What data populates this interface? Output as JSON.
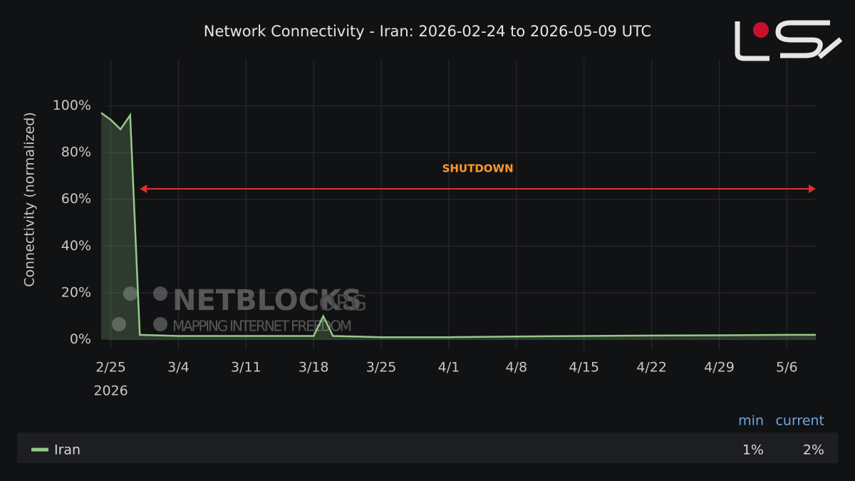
{
  "chart_data": {
    "type": "line",
    "title": "Network Connectivity - Iran: 2026-02-24 to 2026-05-09 UTC",
    "y_label": "Connectivity (normalized)",
    "x": [
      "2026-02-24",
      "2026-02-25",
      "2026-02-26",
      "2026-02-27",
      "2026-02-28",
      "2026-03-04",
      "2026-03-11",
      "2026-03-18",
      "2026-03-19",
      "2026-03-20",
      "2026-03-25",
      "2026-04-01",
      "2026-04-08",
      "2026-04-15",
      "2026-04-22",
      "2026-04-29",
      "2026-05-06",
      "2026-05-09"
    ],
    "series": [
      {
        "name": "Iran",
        "color": "#96c98a",
        "values": [
          97,
          94,
          90,
          96,
          2,
          1.5,
          1.5,
          1.5,
          10,
          1.5,
          1,
          1,
          1.3,
          1.5,
          1.7,
          1.8,
          2,
          2
        ]
      }
    ],
    "xlim": [
      "2026-02-24",
      "2026-05-09"
    ],
    "xticks": [
      {
        "value": "2026-02-25",
        "label": "2/25"
      },
      {
        "value": "2026-03-04",
        "label": "3/4"
      },
      {
        "value": "2026-03-11",
        "label": "3/11"
      },
      {
        "value": "2026-03-18",
        "label": "3/18"
      },
      {
        "value": "2026-03-25",
        "label": "3/25"
      },
      {
        "value": "2026-04-01",
        "label": "4/1"
      },
      {
        "value": "2026-04-08",
        "label": "4/8"
      },
      {
        "value": "2026-04-15",
        "label": "4/15"
      },
      {
        "value": "2026-04-22",
        "label": "4/22"
      },
      {
        "value": "2026-04-29",
        "label": "4/29"
      },
      {
        "value": "2026-05-06",
        "label": "5/6"
      }
    ],
    "x_year_label": "2026",
    "ylim": [
      -2,
      120
    ],
    "yticks": [
      {
        "value": 0,
        "label": "0%"
      },
      {
        "value": 20,
        "label": "20%"
      },
      {
        "value": 40,
        "label": "40%"
      },
      {
        "value": 60,
        "label": "60%"
      },
      {
        "value": 80,
        "label": "80%"
      },
      {
        "value": 100,
        "label": "100%"
      }
    ],
    "grid": true,
    "annotation": {
      "text": "SHUTDOWN",
      "start": "2026-02-28",
      "end": "2026-05-09",
      "y": 64.5,
      "color": "#e02f2f",
      "text_color": "#ff9830"
    },
    "watermark": {
      "title": "NETBLOCKS",
      "suffix": ".ORG",
      "subtitle": "MAPPING INTERNET FREEDOM"
    },
    "legend_stats": [
      {
        "name": "min",
        "value": "1%"
      },
      {
        "name": "current",
        "value": "2%"
      }
    ]
  }
}
